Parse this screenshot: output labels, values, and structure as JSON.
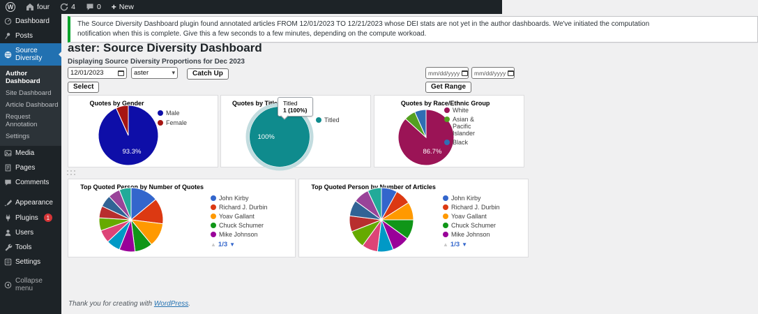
{
  "admin_bar": {
    "site_name": "four",
    "updates_count": "4",
    "comments_count": "0",
    "new_label": "New"
  },
  "sidebar": {
    "items": [
      {
        "label": "Dashboard"
      },
      {
        "label": "Posts"
      },
      {
        "label": "Source Diversity"
      },
      {
        "label": "Media"
      },
      {
        "label": "Pages"
      },
      {
        "label": "Comments"
      },
      {
        "label": "Appearance"
      },
      {
        "label": "Plugins",
        "badge": "1"
      },
      {
        "label": "Users"
      },
      {
        "label": "Tools"
      },
      {
        "label": "Settings"
      },
      {
        "label": "Collapse menu"
      }
    ],
    "submenu": [
      {
        "label": "Author Dashboard"
      },
      {
        "label": "Site Dashboard"
      },
      {
        "label": "Article Dashboard"
      },
      {
        "label": "Request Annotation"
      },
      {
        "label": "Settings"
      }
    ]
  },
  "notice": {
    "line1": "The Source Diversity Dashboard plugin found annotated articles FROM 12/01/2023 TO 12/21/2023 whose DEI stats are not yet in the author dashboards. We've initiated the computation",
    "line2": "notification when this is complete. Give this a few seconds to a few minutes, depending on the compute workoad."
  },
  "page": {
    "title": "aster: Source Diversity Dashboard",
    "subtitle": "Displaying Source Diversity Proportions for Dec 2023"
  },
  "controls": {
    "date_value": "12/01/2023",
    "author_value": "aster",
    "catch_up": "Catch Up",
    "select": "Select",
    "range_placeholder": "mm/dd/yyyy",
    "get_range": "Get Range"
  },
  "icons": {
    "wordpress_logo": "W",
    "plus": "+",
    "chevron_down": "▾",
    "page_up": "▲",
    "page_down": "▼"
  },
  "chart_data": [
    {
      "type": "pie",
      "title": "Quotes by Gender",
      "labels": [
        "Male",
        "Female"
      ],
      "values": [
        93.3,
        6.7
      ],
      "colors": [
        "#0e0ea8",
        "#a61512"
      ],
      "slice_label": "93.3%",
      "legend": [
        "Male",
        "Female"
      ],
      "legend_position": "right"
    },
    {
      "type": "pie",
      "title": "Quotes by Titled/Non",
      "labels": [
        "Titled"
      ],
      "values": [
        100
      ],
      "colors": [
        "#0f8b8d"
      ],
      "slice_label": "100%",
      "legend": [
        "Titled"
      ],
      "highlight_ring": true,
      "tooltip": {
        "name": "Titled",
        "value": "1 (100%)"
      },
      "legend_position": "right"
    },
    {
      "type": "pie",
      "title": "Quotes by Race/Ethnic Group",
      "labels": [
        "White",
        "Asian & Pacific Islander",
        "Black"
      ],
      "values": [
        86.7,
        6.65,
        6.65
      ],
      "colors": [
        "#9b1456",
        "#54a021",
        "#2f6eb3"
      ],
      "slice_label": "86.7%",
      "legend": [
        "White",
        "Asian & Pacific Islander",
        "Black"
      ],
      "legend_position": "right"
    },
    {
      "type": "pie",
      "title": "Top Quoted Person by Number of Quotes",
      "values": [
        14,
        13,
        12,
        9,
        8,
        7,
        6.5,
        6.5,
        6,
        6,
        6,
        6
      ],
      "colors": [
        "#3366cc",
        "#dc3912",
        "#ff9900",
        "#109618",
        "#990099",
        "#0099c6",
        "#dd4477",
        "#66aa00",
        "#b82e2e",
        "#316395",
        "#994499",
        "#22aa99"
      ],
      "legend": [
        "John Kirby",
        "Richard J. Durbin",
        "Yoav Gallant",
        "Chuck Schumer",
        "Mike Johnson"
      ],
      "legend_colors": [
        "#3366cc",
        "#dc3912",
        "#ff9900",
        "#109618",
        "#990099"
      ],
      "pagination": "1/3",
      "legend_position": "right"
    },
    {
      "type": "pie",
      "title": "Top Quoted Person by Number of Articles",
      "values": [
        8,
        8,
        9,
        10,
        9,
        8,
        8,
        9,
        8,
        8,
        8,
        7
      ],
      "colors": [
        "#3366cc",
        "#dc3912",
        "#ff9900",
        "#109618",
        "#990099",
        "#0099c6",
        "#dd4477",
        "#66aa00",
        "#b82e2e",
        "#316395",
        "#994499",
        "#22aa99"
      ],
      "legend": [
        "John Kirby",
        "Richard J. Durbin",
        "Yoav Gallant",
        "Chuck Schumer",
        "Mike Johnson"
      ],
      "legend_colors": [
        "#3366cc",
        "#dc3912",
        "#ff9900",
        "#109618",
        "#990099"
      ],
      "pagination": "1/3",
      "legend_position": "right"
    }
  ],
  "footer": {
    "text": "Thank you for creating with",
    "link": "WordPress",
    "period": "."
  }
}
